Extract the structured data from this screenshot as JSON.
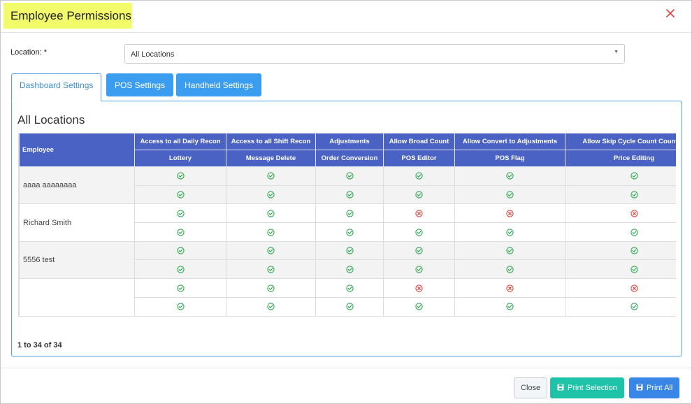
{
  "modal": {
    "title": "Employee Permissions"
  },
  "location": {
    "label": "Location: *",
    "value": "All Locations"
  },
  "tabs": [
    {
      "label": "Dashboard Settings",
      "active": true
    },
    {
      "label": "POS Settings",
      "active": false
    },
    {
      "label": "Handheld Settings",
      "active": false
    }
  ],
  "panel": {
    "title": "All Locations"
  },
  "table": {
    "employee_header": "Employee",
    "header_row1": [
      "Access to all Daily Recon",
      "Access to all Shift Recon",
      "Adjustments",
      "Allow Broad Count",
      "Allow Convert to Adjustments",
      "Allow Skip Cycle Count Counted"
    ],
    "header_row2": [
      "Lottery",
      "Message Delete",
      "Order Conversion",
      "POS Editor",
      "POS Flag",
      "Price Editing"
    ],
    "employees": [
      {
        "name": "aaaa aaaaaaaa",
        "rows": [
          [
            "ok",
            "ok",
            "ok",
            "ok",
            "ok",
            "ok"
          ],
          [
            "ok",
            "ok",
            "ok",
            "ok",
            "ok",
            "ok"
          ]
        ]
      },
      {
        "name": "Richard Smith",
        "rows": [
          [
            "ok",
            "ok",
            "ok",
            "no",
            "no",
            "no"
          ],
          [
            "ok",
            "ok",
            "ok",
            "ok",
            "ok",
            "ok"
          ]
        ]
      },
      {
        "name": "5556 test",
        "rows": [
          [
            "ok",
            "ok",
            "ok",
            "ok",
            "ok",
            "ok"
          ],
          [
            "ok",
            "ok",
            "ok",
            "ok",
            "ok",
            "ok"
          ]
        ]
      },
      {
        "name": "",
        "rows": [
          [
            "ok",
            "ok",
            "ok",
            "no",
            "no",
            "no"
          ],
          [
            "ok",
            "ok",
            "ok",
            "ok",
            "ok",
            "ok"
          ]
        ]
      }
    ]
  },
  "pager": {
    "text": "1 to 34 of 34"
  },
  "footer": {
    "close_label": "Close",
    "print_selection_label": "Print Selection",
    "print_all_label": "Print All"
  },
  "icons": {
    "ok": "check-circle-icon",
    "no": "x-circle-icon",
    "close": "close-icon",
    "save": "save-icon"
  },
  "colors": {
    "header_bg": "#4a62c3",
    "ok": "#2fa84f",
    "no": "#e0433b",
    "tab_blue": "#3a9df0",
    "print_selection": "#1fc3a8",
    "print_all": "#3a86e6"
  }
}
